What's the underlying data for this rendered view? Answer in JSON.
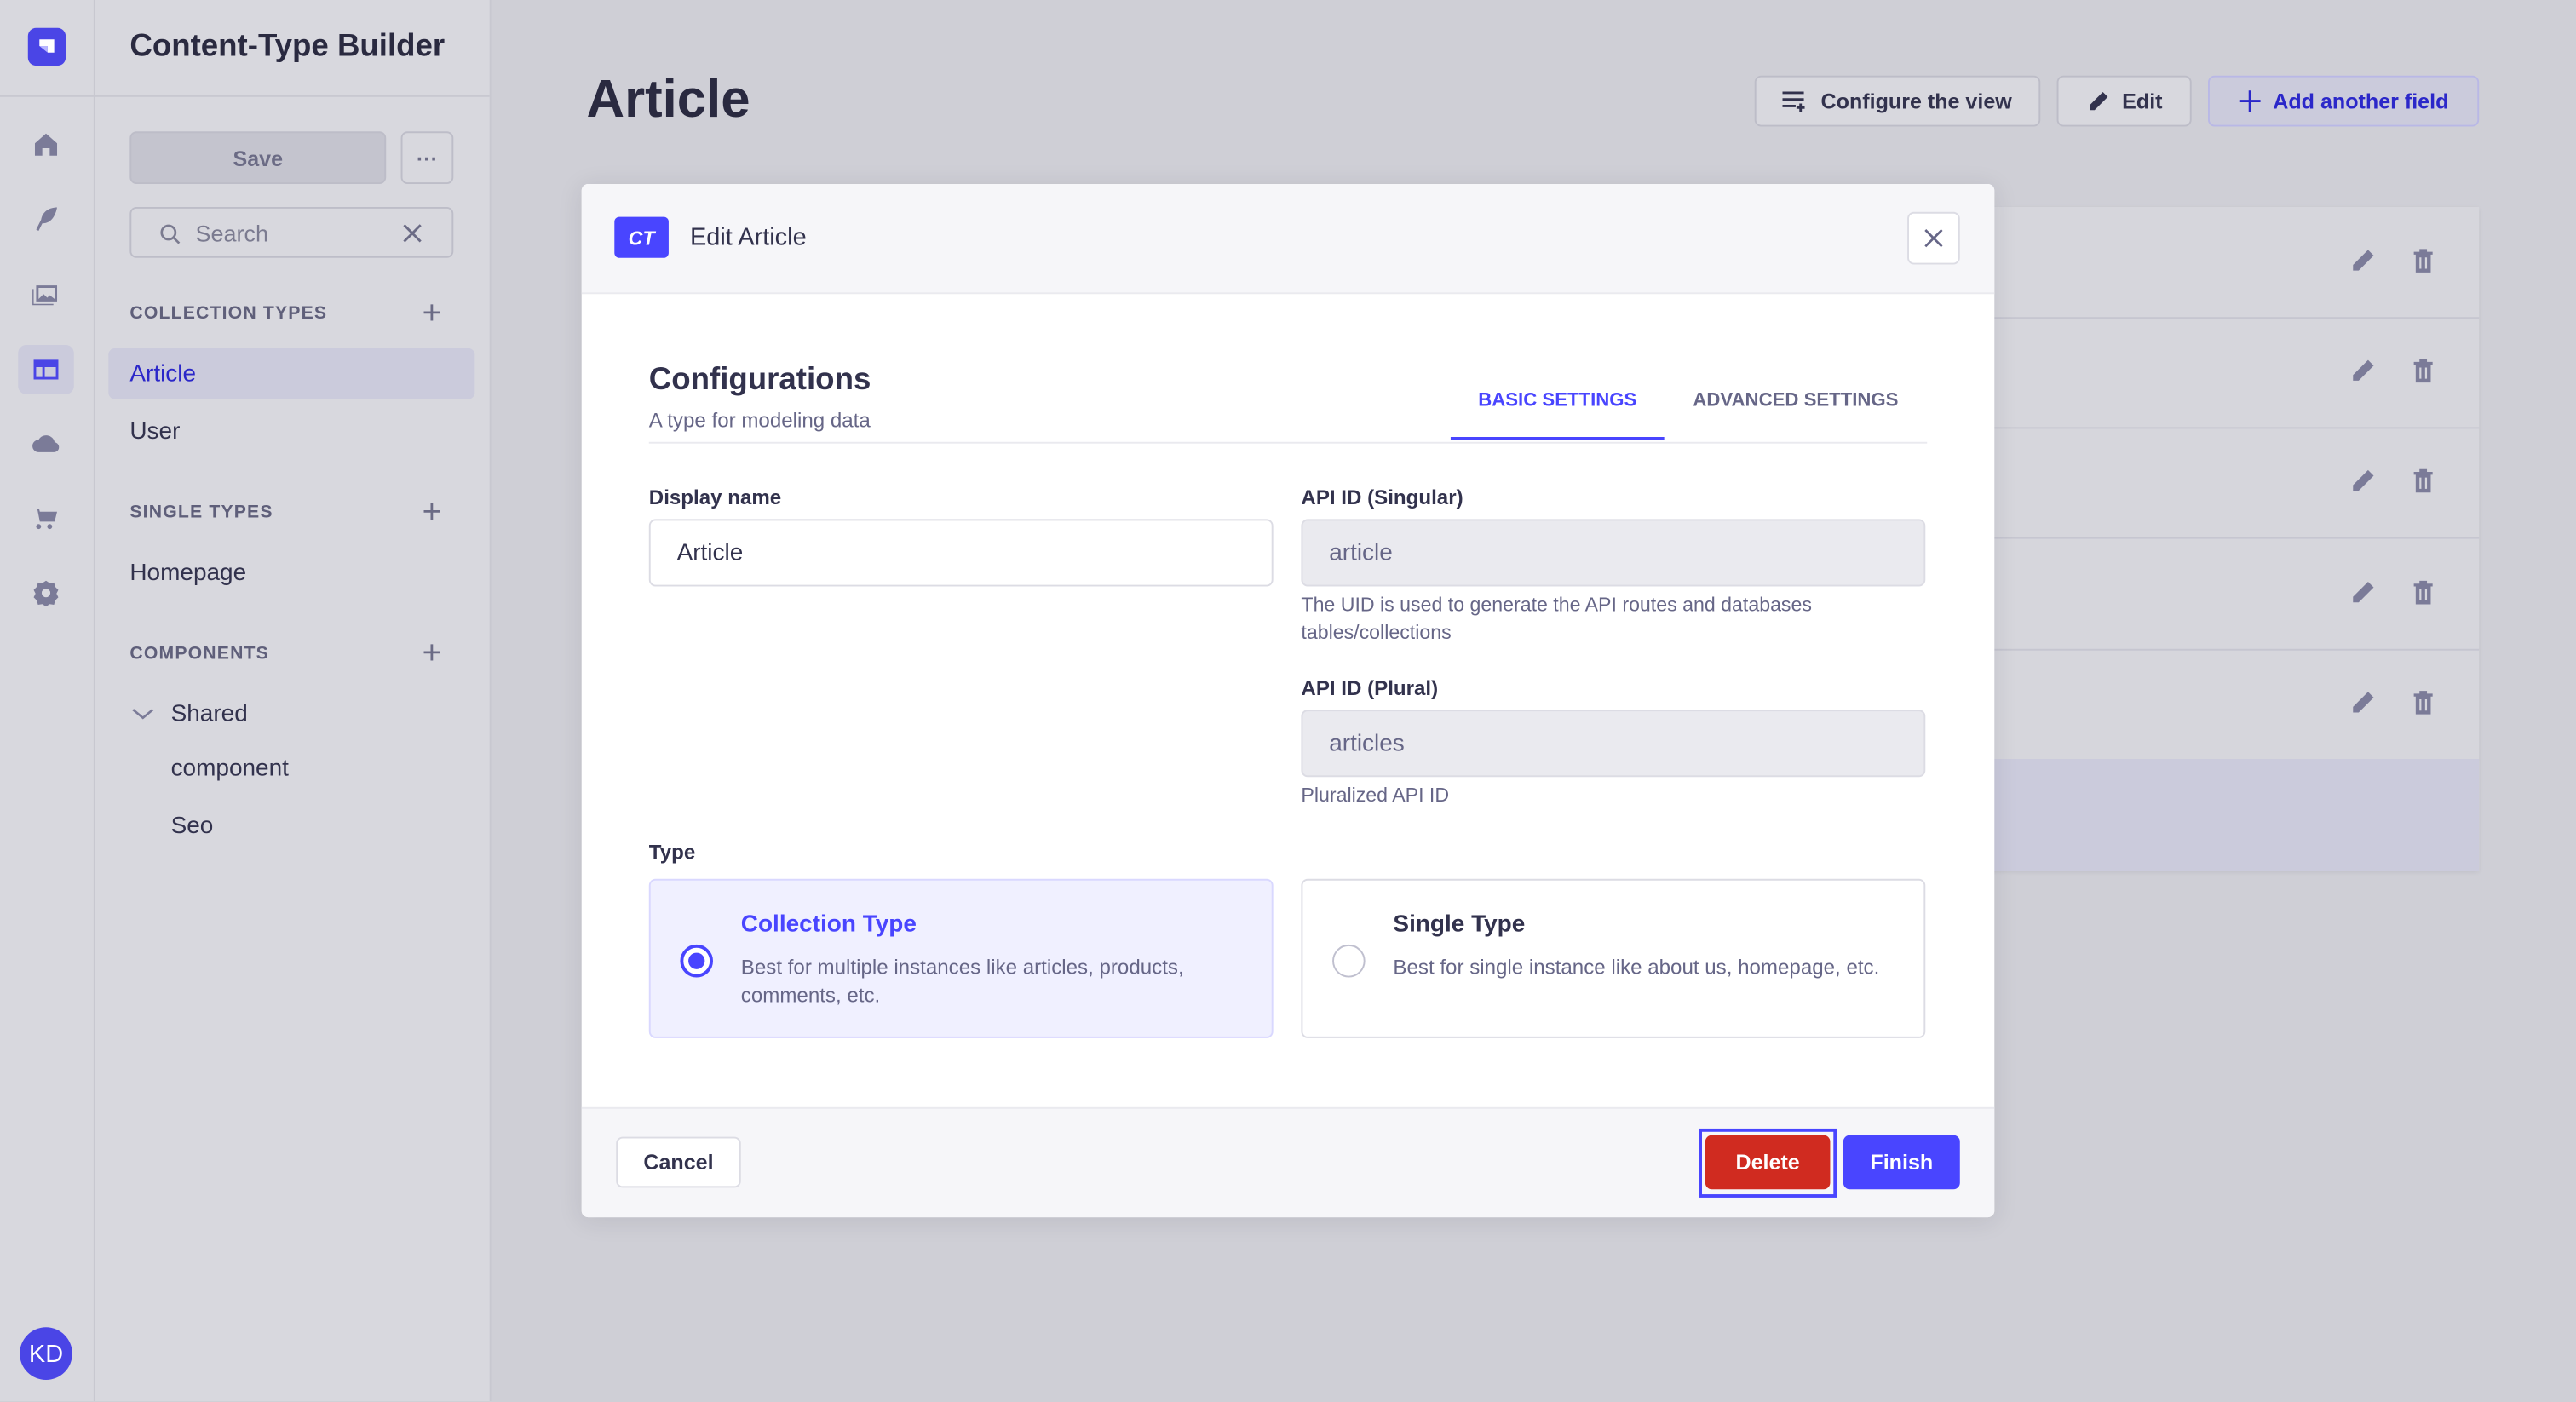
{
  "rail": {
    "icons": [
      "home-icon",
      "feather-icon",
      "media-library-icon",
      "content-type-builder-icon",
      "cloud-icon",
      "cart-icon",
      "settings-icon"
    ],
    "active_index": 3,
    "avatar_initials": "KD"
  },
  "sidebar": {
    "title": "Content-Type Builder",
    "save_label": "Save",
    "more_label": "···",
    "search_placeholder": "Search",
    "collection_types": {
      "heading": "COLLECTION TYPES",
      "items": [
        "Article",
        "User"
      ],
      "active": "Article"
    },
    "single_types": {
      "heading": "SINGLE TYPES",
      "items": [
        "Homepage"
      ]
    },
    "components": {
      "heading": "COMPONENTS",
      "group": "Shared",
      "items": [
        "component",
        "Seo"
      ]
    }
  },
  "main": {
    "title": "Article",
    "configure_label": "Configure the view",
    "edit_label": "Edit",
    "add_field_label": "Add another field"
  },
  "modal": {
    "badge": "CT",
    "title": "Edit Article",
    "section_title": "Configurations",
    "section_subtitle": "A type for modeling data",
    "tabs": [
      {
        "label": "BASIC SETTINGS",
        "active": true
      },
      {
        "label": "ADVANCED SETTINGS",
        "active": false
      }
    ],
    "display_name": {
      "label": "Display name",
      "value": "Article"
    },
    "api_singular": {
      "label": "API ID (Singular)",
      "value": "article",
      "help": "The UID is used to generate the API routes and databases tables/collections"
    },
    "api_plural": {
      "label": "API ID (Plural)",
      "value": "articles",
      "help": "Pluralized API ID"
    },
    "type_label": "Type",
    "types": [
      {
        "title": "Collection Type",
        "description": "Best for multiple instances like articles, products, comments, etc.",
        "selected": true
      },
      {
        "title": "Single Type",
        "description": "Best for single instance like about us, homepage, etc.",
        "selected": false
      }
    ],
    "cancel_label": "Cancel",
    "delete_label": "Delete",
    "finish_label": "Finish"
  },
  "colors": {
    "primary": "#4945ff",
    "danger": "#d02b20",
    "focus_outline": "#4945ff"
  }
}
